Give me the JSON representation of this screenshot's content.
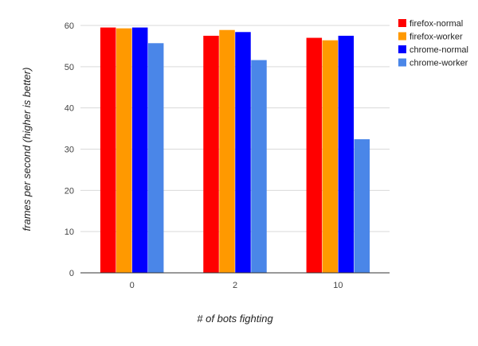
{
  "chart_data": {
    "type": "bar",
    "title": "",
    "xlabel": "# of bots fighting",
    "ylabel": "frames per second (higher is better)",
    "categories": [
      "0",
      "2",
      "10"
    ],
    "ylim": [
      0,
      60
    ],
    "yticks": [
      0,
      10,
      20,
      30,
      40,
      50,
      60
    ],
    "grid": true,
    "legend_position": "right",
    "series": [
      {
        "name": "firefox-normal",
        "color": "#ff0000",
        "values": [
          59.5,
          57.5,
          57.0
        ]
      },
      {
        "name": "firefox-worker",
        "color": "#ff9900",
        "values": [
          59.3,
          58.9,
          56.4
        ]
      },
      {
        "name": "chrome-normal",
        "color": "#0000ff",
        "values": [
          59.5,
          58.4,
          57.5
        ]
      },
      {
        "name": "chrome-worker",
        "color": "#4a86e8",
        "values": [
          55.7,
          51.6,
          32.4
        ]
      }
    ]
  }
}
